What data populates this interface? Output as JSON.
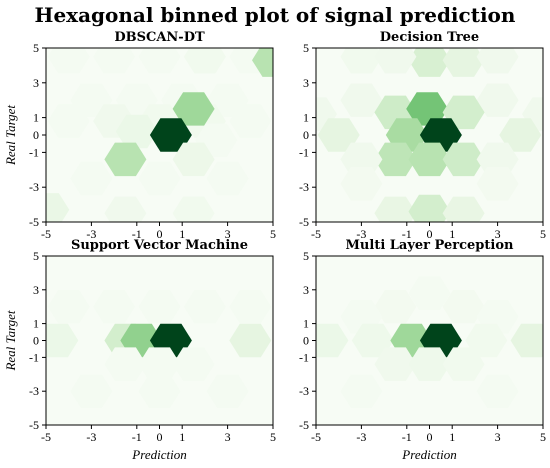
{
  "figure": {
    "title": "Hexagonal binned plot of signal prediction",
    "colormap": [
      "#f7fcf5",
      "#e5f5e0",
      "#c7e9c0",
      "#a1d99b",
      "#74c476",
      "#41ab5d",
      "#238b45",
      "#006d2c",
      "#00441b"
    ]
  },
  "chart_data": [
    {
      "type": "heatmap",
      "subtype": "hexbin",
      "title": "DBSCAN-DT",
      "xlabel": "",
      "ylabel": "Real Target",
      "xlim": [
        -5,
        5
      ],
      "ylim": [
        -5,
        5
      ],
      "xticks": [
        "-5",
        "-3",
        "-1",
        "0",
        "1",
        "3",
        "5"
      ],
      "yticks": [
        "5",
        "3",
        "1",
        "0",
        "-1",
        "-3",
        "-5"
      ],
      "grid": false,
      "cells": [
        {
          "x": -4,
          "y": 4.5,
          "v": 0.02
        },
        {
          "x": -2,
          "y": 4.5,
          "v": 0.02
        },
        {
          "x": 0,
          "y": 4.5,
          "v": 0.02
        },
        {
          "x": 2,
          "y": 4.5,
          "v": 0.04
        },
        {
          "x": 4,
          "y": 4.5,
          "v": 0.02
        },
        {
          "x": 5,
          "y": 4.3,
          "v": 0.3
        },
        {
          "x": -3,
          "y": 2,
          "v": 0.02
        },
        {
          "x": -1,
          "y": 2,
          "v": 0.02
        },
        {
          "x": 1,
          "y": 2,
          "v": 0.02
        },
        {
          "x": 3,
          "y": 2,
          "v": 0.02
        },
        {
          "x": -4,
          "y": 0.8,
          "v": 0.02
        },
        {
          "x": -2,
          "y": 0.8,
          "v": 0.05
        },
        {
          "x": 0,
          "y": 0.8,
          "v": 0.04
        },
        {
          "x": 2,
          "y": 0.8,
          "v": 0.04
        },
        {
          "x": 4,
          "y": 0.8,
          "v": 0.02
        },
        {
          "x": -1,
          "y": 0.2,
          "v": 0.08
        },
        {
          "x": 1.5,
          "y": 1.5,
          "v": 0.38
        },
        {
          "x": 0.5,
          "y": 0,
          "v": 1.0
        },
        {
          "x": 2.5,
          "y": -0.3,
          "v": 0.02
        },
        {
          "x": -1.5,
          "y": -1.4,
          "v": 0.3
        },
        {
          "x": 1.5,
          "y": -1.4,
          "v": 0.07
        },
        {
          "x": -3,
          "y": -2.5,
          "v": 0.02
        },
        {
          "x": 0,
          "y": -2.5,
          "v": 0.02
        },
        {
          "x": 3,
          "y": -2.5,
          "v": 0.02
        },
        {
          "x": -4.9,
          "y": -4.3,
          "v": 0.09
        },
        {
          "x": -1.5,
          "y": -4.5,
          "v": 0.05
        },
        {
          "x": 1.5,
          "y": -4.5,
          "v": 0.04
        }
      ]
    },
    {
      "type": "heatmap",
      "subtype": "hexbin",
      "title": "Decision Tree",
      "xlabel": "",
      "ylabel": "",
      "xlim": [
        -5,
        5
      ],
      "ylim": [
        -5,
        5
      ],
      "xticks": [
        "-5",
        "-3",
        "-1",
        "0",
        "1",
        "3",
        "5"
      ],
      "yticks": [
        "5",
        "3",
        "1",
        "0",
        "-1",
        "-3",
        "-5"
      ],
      "grid": false,
      "cells": [
        {
          "x": -3,
          "y": 4.5,
          "v": 0.04
        },
        {
          "x": 0,
          "y": 4.3,
          "v": 0.18
        },
        {
          "x": 1.5,
          "y": 4.3,
          "v": 0.12
        },
        {
          "x": 3,
          "y": 4.5,
          "v": 0.05
        },
        {
          "x": -1.5,
          "y": 4.5,
          "v": 0.05
        },
        {
          "x": -3,
          "y": 2,
          "v": 0.05
        },
        {
          "x": 3,
          "y": 2,
          "v": 0.05
        },
        {
          "x": -5,
          "y": 1.2,
          "v": 0.05
        },
        {
          "x": 5,
          "y": 1.2,
          "v": 0.05
        },
        {
          "x": -1.5,
          "y": 1.3,
          "v": 0.22
        },
        {
          "x": -0.1,
          "y": 1.5,
          "v": 0.5
        },
        {
          "x": 1.5,
          "y": 1.3,
          "v": 0.2
        },
        {
          "x": -4,
          "y": 0,
          "v": 0.12
        },
        {
          "x": 4,
          "y": 0,
          "v": 0.12
        },
        {
          "x": -1,
          "y": 0,
          "v": 0.35
        },
        {
          "x": 0.5,
          "y": 0,
          "v": 1.0
        },
        {
          "x": -1.5,
          "y": -1.4,
          "v": 0.28
        },
        {
          "x": 0,
          "y": -1.4,
          "v": 0.3
        },
        {
          "x": 1.5,
          "y": -1.4,
          "v": 0.22
        },
        {
          "x": -3,
          "y": -1.4,
          "v": 0.05
        },
        {
          "x": 3,
          "y": -1.4,
          "v": 0.05
        },
        {
          "x": -3,
          "y": -2.8,
          "v": 0.03
        },
        {
          "x": 3,
          "y": -2.8,
          "v": 0.03
        },
        {
          "x": -1.5,
          "y": -4.5,
          "v": 0.1
        },
        {
          "x": 0,
          "y": -4.4,
          "v": 0.2
        },
        {
          "x": 1.5,
          "y": -4.5,
          "v": 0.1
        }
      ]
    },
    {
      "type": "heatmap",
      "subtype": "hexbin",
      "title": "Support Vector Machine",
      "xlabel": "Prediction",
      "ylabel": "Real Target",
      "xlim": [
        -5,
        5
      ],
      "ylim": [
        -5,
        5
      ],
      "xticks": [
        "-5",
        "-3",
        "-1",
        "0",
        "1",
        "3",
        "5"
      ],
      "yticks": [
        "5",
        "3",
        "1",
        "0",
        "-1",
        "-3",
        "-5"
      ],
      "grid": false,
      "cells": [
        {
          "x": -4,
          "y": 2,
          "v": 0.02
        },
        {
          "x": -2,
          "y": 2,
          "v": 0.02
        },
        {
          "x": 0,
          "y": 2,
          "v": 0.02
        },
        {
          "x": 2,
          "y": 2,
          "v": 0.02
        },
        {
          "x": 4,
          "y": 2,
          "v": 0.02
        },
        {
          "x": -4.5,
          "y": 0,
          "v": 0.08
        },
        {
          "x": -1.5,
          "y": 0,
          "v": 0.2
        },
        {
          "x": -0.8,
          "y": 0,
          "v": 0.42
        },
        {
          "x": 0.5,
          "y": 0,
          "v": 1.0
        },
        {
          "x": 4,
          "y": 0,
          "v": 0.12
        },
        {
          "x": -1.5,
          "y": -1.4,
          "v": 0.02
        },
        {
          "x": 0,
          "y": -1.4,
          "v": 0.02
        },
        {
          "x": 1.5,
          "y": -1.4,
          "v": 0.02
        },
        {
          "x": -3,
          "y": -3,
          "v": 0.02
        },
        {
          "x": 0,
          "y": -3,
          "v": 0.02
        },
        {
          "x": 3,
          "y": -3,
          "v": 0.02
        }
      ]
    },
    {
      "type": "heatmap",
      "subtype": "hexbin",
      "title": "Multi Layer Perception",
      "xlabel": "Prediction",
      "ylabel": "",
      "xlim": [
        -5,
        5
      ],
      "ylim": [
        -5,
        5
      ],
      "xticks": [
        "-5",
        "-3",
        "-1",
        "0",
        "1",
        "3",
        "5"
      ],
      "yticks": [
        "5",
        "3",
        "1",
        "0",
        "-1",
        "-3",
        "-5"
      ],
      "grid": false,
      "cells": [
        {
          "x": -1.5,
          "y": 2,
          "v": 0.03
        },
        {
          "x": 1.5,
          "y": 2,
          "v": 0.03
        },
        {
          "x": 0,
          "y": 2.8,
          "v": 0.02
        },
        {
          "x": -3,
          "y": 1.4,
          "v": 0.02
        },
        {
          "x": 3,
          "y": 1.4,
          "v": 0.02
        },
        {
          "x": -4.5,
          "y": 0,
          "v": 0.08
        },
        {
          "x": -2.5,
          "y": 0,
          "v": 0.06
        },
        {
          "x": -0.8,
          "y": 0,
          "v": 0.38
        },
        {
          "x": 0.5,
          "y": 0,
          "v": 1.0
        },
        {
          "x": 2.5,
          "y": 0,
          "v": 0.04
        },
        {
          "x": 4.5,
          "y": 0,
          "v": 0.12
        },
        {
          "x": -1.5,
          "y": -1.4,
          "v": 0.05
        },
        {
          "x": 0,
          "y": -1.4,
          "v": 0.06
        },
        {
          "x": 1.5,
          "y": -1.4,
          "v": 0.04
        },
        {
          "x": -3,
          "y": -3,
          "v": 0.02
        },
        {
          "x": 3,
          "y": -3,
          "v": 0.02
        }
      ]
    }
  ]
}
